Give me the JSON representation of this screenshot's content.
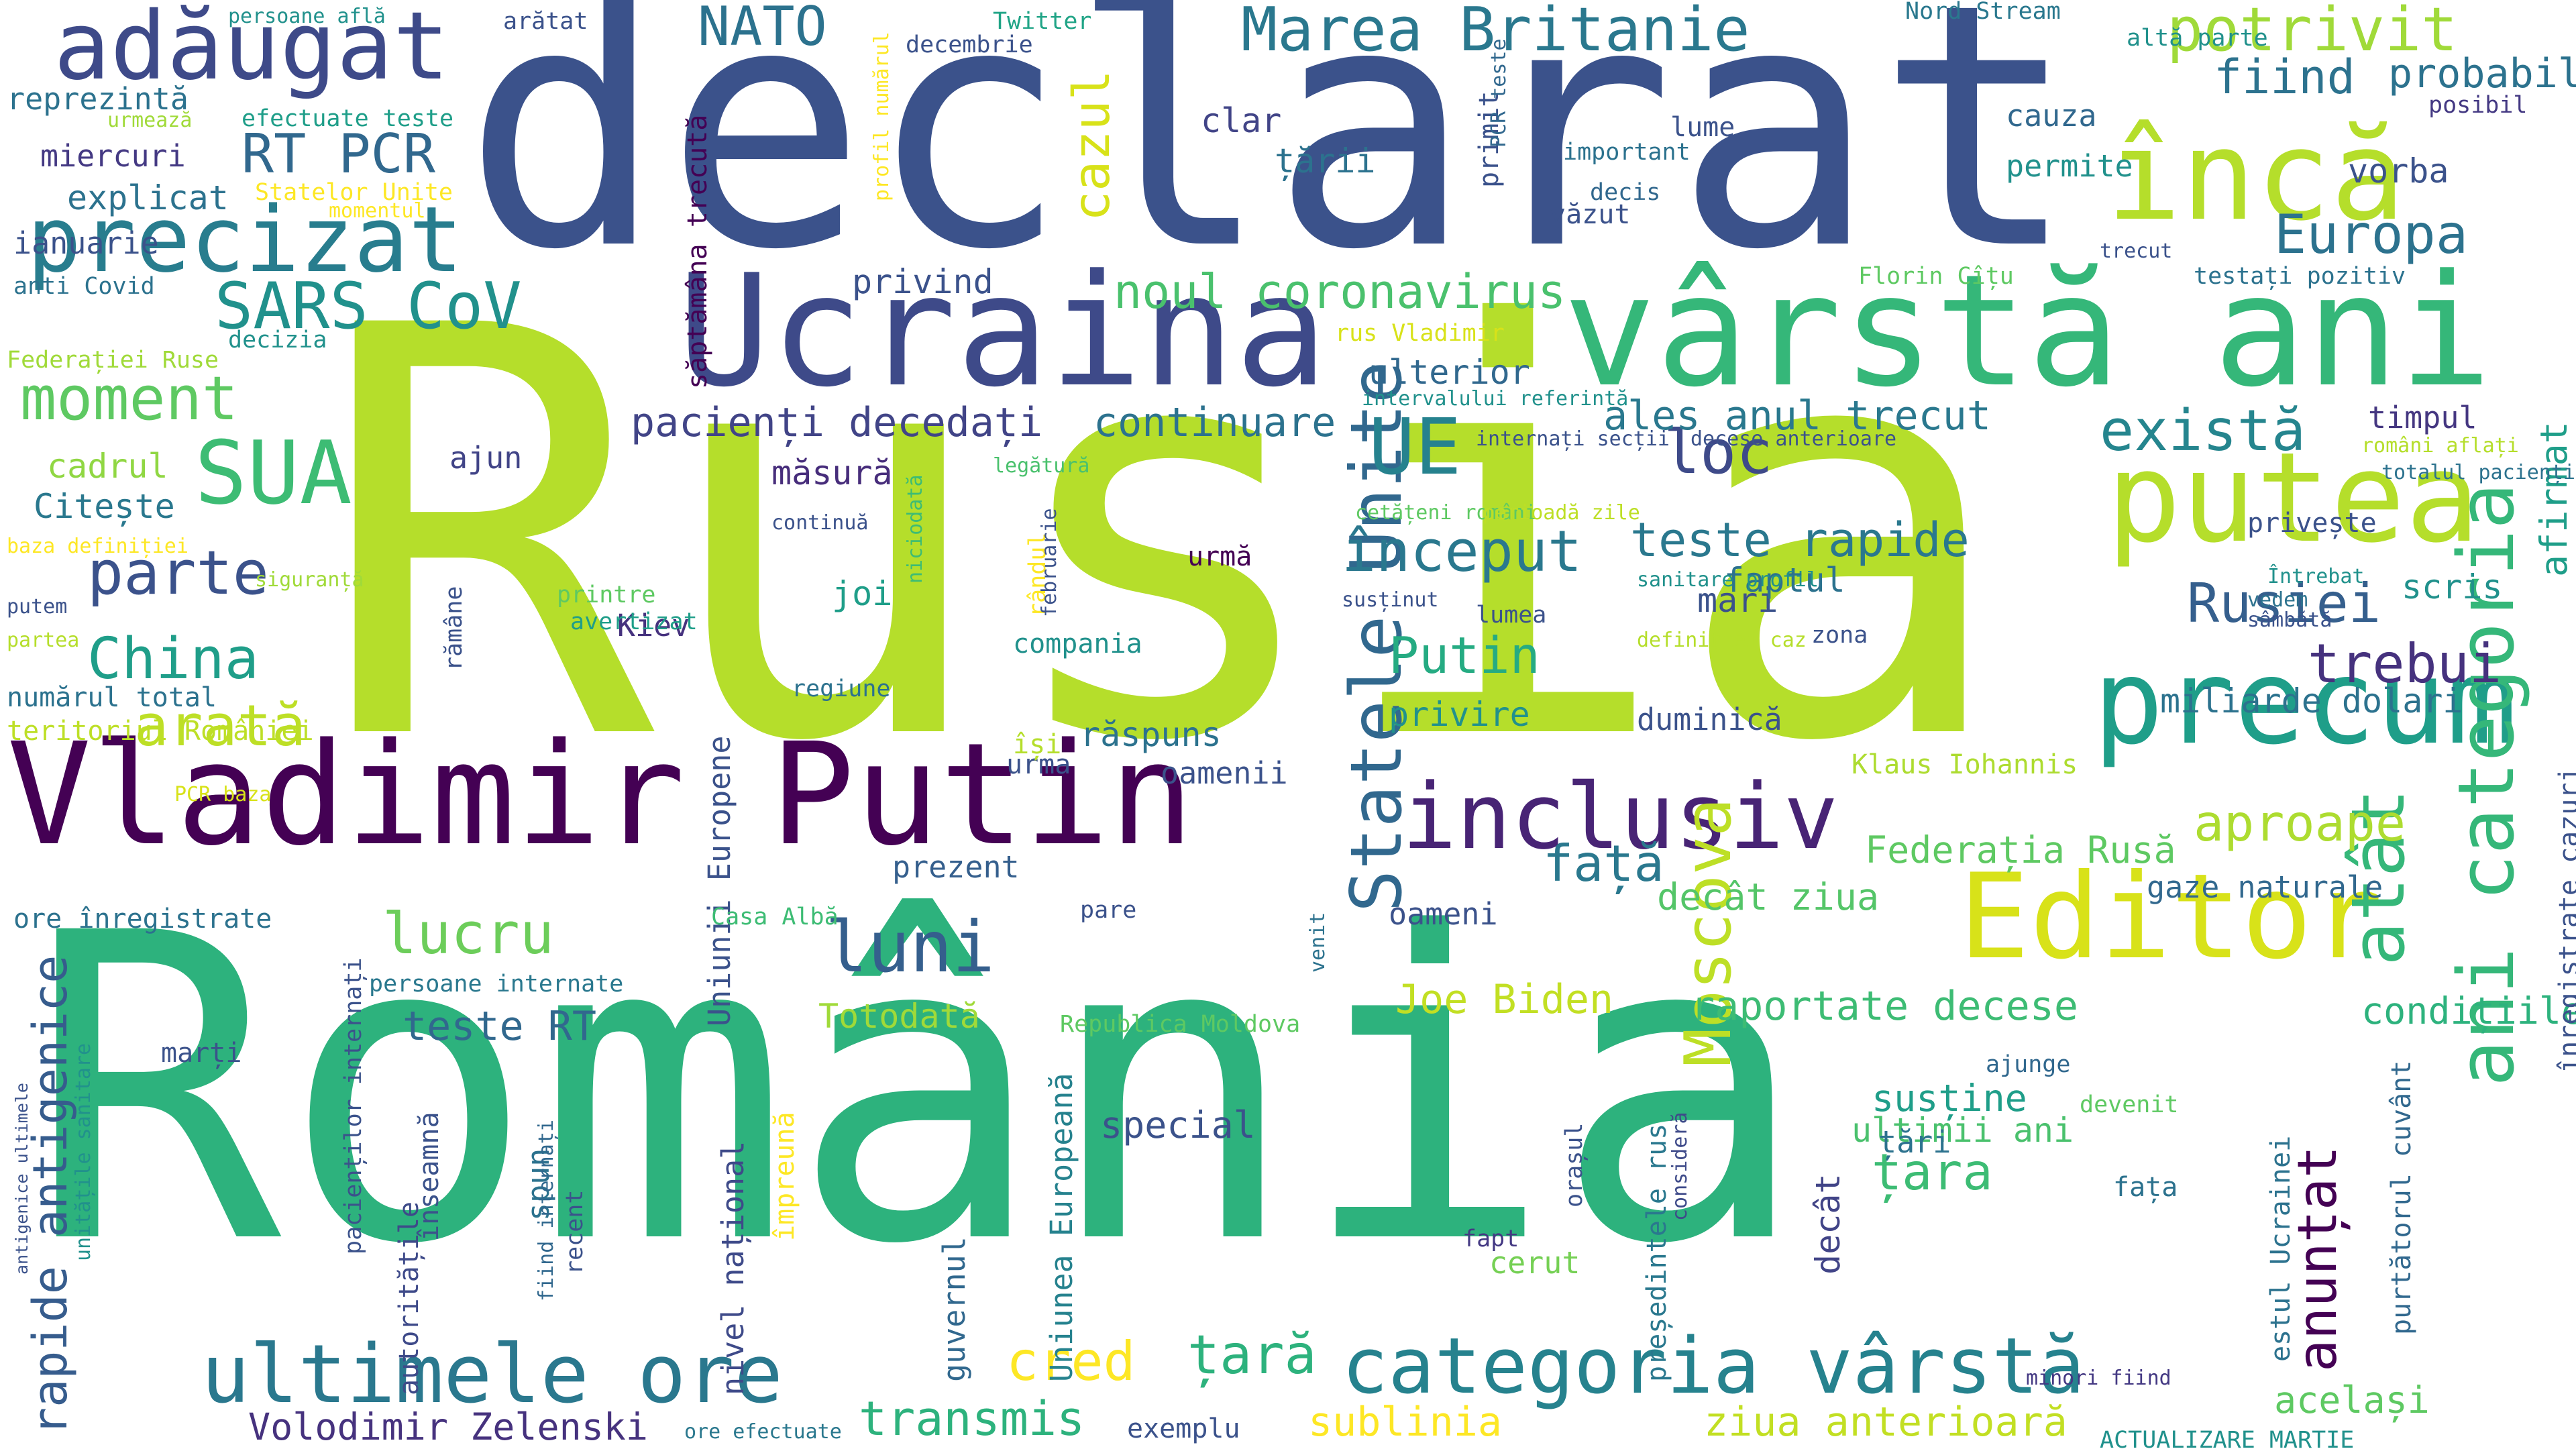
{
  "words": [
    {
      "text": "Rusia",
      "color": "#b5de2b"
    },
    {
      "text": "România",
      "color": "#2db27d"
    },
    {
      "text": "declarat",
      "color": "#3b528b"
    },
    {
      "text": "vârstă ani",
      "color": "#35b779"
    },
    {
      "text": "Ucraina",
      "color": "#3e4a89"
    },
    {
      "text": "Vladimir Putin",
      "color": "#440154"
    },
    {
      "text": "precum",
      "color": "#1f9e89"
    },
    {
      "text": "putea",
      "color": "#b5de2b"
    },
    {
      "text": "Editor",
      "color": "#d8e219"
    },
    {
      "text": "încă",
      "color": "#b5de2b"
    },
    {
      "text": "categoria vârstă",
      "color": "#26828e"
    },
    {
      "text": "ultimele ore",
      "color": "#2a788e"
    },
    {
      "text": "adăugat",
      "color": "#3e4a89"
    },
    {
      "text": "precizat",
      "color": "#287d8e"
    },
    {
      "text": "inclusiv",
      "color": "#482475"
    },
    {
      "text": "Statele Unite",
      "color": "#31688e"
    },
    {
      "text": "ani categoria",
      "color": "#35b779"
    },
    {
      "text": "atât",
      "color": "#35b779"
    },
    {
      "text": "SUA",
      "color": "#3dbc74"
    },
    {
      "text": "UE",
      "color": "#26828e"
    },
    {
      "text": "Moscova",
      "color": "#bddf26"
    },
    {
      "text": "luni",
      "color": "#355f8d"
    },
    {
      "text": "SARS CoV",
      "color": "#21918c"
    },
    {
      "text": "Marea Britanie",
      "color": "#2a788e"
    },
    {
      "text": "potrivit",
      "color": "#a0da39"
    },
    {
      "text": "există",
      "color": "#25858e"
    },
    {
      "text": "parte",
      "color": "#3b528b"
    },
    {
      "text": "moment",
      "color": "#5ec962"
    },
    {
      "text": "China",
      "color": "#1f9e89"
    },
    {
      "text": "arată",
      "color": "#bddf26"
    },
    {
      "text": "lucru",
      "color": "#6ccd5a"
    },
    {
      "text": "Rusiei",
      "color": "#355f8d"
    },
    {
      "text": "trebui",
      "color": "#46327e"
    },
    {
      "text": "loc",
      "color": "#3e4a89"
    },
    {
      "text": "început",
      "color": "#2a788e"
    },
    {
      "text": "Europa",
      "color": "#2c728e"
    },
    {
      "text": "cazul",
      "color": "#d8e219"
    },
    {
      "text": "față",
      "color": "#2a788e"
    },
    {
      "text": "anunțat",
      "color": "#440154"
    },
    {
      "text": "aproape",
      "color": "#addc30"
    },
    {
      "text": "țara",
      "color": "#3dbc74"
    },
    {
      "text": "țară",
      "color": "#2db27d"
    },
    {
      "text": "cred",
      "color": "#fde725"
    },
    {
      "text": "transmis",
      "color": "#2db27d"
    },
    {
      "text": "rapide antigenice",
      "color": "#365c8d"
    },
    {
      "text": "NATO",
      "color": "#2c728e"
    },
    {
      "text": "RT PCR",
      "color": "#31688e"
    },
    {
      "text": "fiind",
      "color": "#2c728e"
    },
    {
      "text": "probabil",
      "color": "#2c728e"
    },
    {
      "text": "noul coronavirus",
      "color": "#4ac16d"
    },
    {
      "text": "teste rapide",
      "color": "#2a788e"
    },
    {
      "text": "Putin",
      "color": "#25ab82"
    },
    {
      "text": "ales anul trecut",
      "color": "#2a788e"
    },
    {
      "text": "pacienți decedați",
      "color": "#414487"
    },
    {
      "text": "continuare",
      "color": "#2c728e"
    },
    {
      "text": "Joe Biden",
      "color": "#c2df23"
    },
    {
      "text": "raportate decese",
      "color": "#3dbc74"
    },
    {
      "text": "Volodimir Zelenski",
      "color": "#46327e"
    },
    {
      "text": "teste RT",
      "color": "#31688e"
    },
    {
      "text": "sublinia",
      "color": "#fde725"
    },
    {
      "text": "ziua anterioară",
      "color": "#c2df23"
    },
    {
      "text": "același",
      "color": "#5ec962"
    },
    {
      "text": "special",
      "color": "#3b528b"
    },
    {
      "text": "susține",
      "color": "#1f9e89"
    },
    {
      "text": "ultimii ani",
      "color": "#4ac16d"
    },
    {
      "text": "condițiile",
      "color": "#2db27d"
    },
    {
      "text": "gaze naturale",
      "color": "#31688e"
    },
    {
      "text": "decât ziua",
      "color": "#54c568"
    },
    {
      "text": "Federația Rusă",
      "color": "#5ec962"
    },
    {
      "text": "miliarde dolari",
      "color": "#2c728e"
    },
    {
      "text": "mari",
      "color": "#3b528b"
    },
    {
      "text": "faptul",
      "color": "#2c728e"
    },
    {
      "text": "măsură",
      "color": "#472d7b"
    },
    {
      "text": "privind",
      "color": "#3b528b"
    },
    {
      "text": "clar",
      "color": "#414487"
    },
    {
      "text": "țării",
      "color": "#2c728e"
    },
    {
      "text": "reprezintă",
      "color": "#2c728e"
    },
    {
      "text": "miercuri",
      "color": "#443983"
    },
    {
      "text": "explicat",
      "color": "#2c728e"
    },
    {
      "text": "ianuarie",
      "color": "#3b528b"
    },
    {
      "text": "Citește",
      "color": "#2a788e"
    },
    {
      "text": "cadrul",
      "color": "#90d743"
    },
    {
      "text": "timpul",
      "color": "#453781"
    },
    {
      "text": "vorba",
      "color": "#3b528b"
    },
    {
      "text": "cauza",
      "color": "#31688e"
    },
    {
      "text": "permite",
      "color": "#21918c"
    },
    {
      "text": "scris",
      "color": "#21918c"
    },
    {
      "text": "privește",
      "color": "#3b528b"
    },
    {
      "text": "afirmat",
      "color": "#1f9e89"
    },
    {
      "text": "Kiev",
      "color": "#46327e"
    },
    {
      "text": "joi",
      "color": "#1f9e89"
    },
    {
      "text": "răspuns",
      "color": "#2c728e"
    },
    {
      "text": "privire",
      "color": "#21918c"
    },
    {
      "text": "duminică",
      "color": "#3b528b"
    },
    {
      "text": "ajun",
      "color": "#414487"
    },
    {
      "text": "numărul total",
      "color": "#2c728e"
    },
    {
      "text": "teritoriul României",
      "color": "#bddf26"
    },
    {
      "text": "oamenii",
      "color": "#3b528b"
    },
    {
      "text": "oameni",
      "color": "#3b528b"
    },
    {
      "text": "prezent",
      "color": "#355f8d"
    },
    {
      "text": "urmă",
      "color": "#440154"
    },
    {
      "text": "urma",
      "color": "#3b528b"
    },
    {
      "text": "ulterior",
      "color": "#31688e"
    },
    {
      "text": "compania",
      "color": "#21918c"
    },
    {
      "text": "marți",
      "color": "#3b528b"
    },
    {
      "text": "nivel național",
      "color": "#3e4a89"
    },
    {
      "text": "Uniunea Europeană",
      "color": "#26828e"
    },
    {
      "text": "Uniunii Europene",
      "color": "#3b528b"
    },
    {
      "text": "Totodată",
      "color": "#a0da39"
    },
    {
      "text": "guvernul",
      "color": "#31688e"
    },
    {
      "text": "decât",
      "color": "#414487"
    },
    {
      "text": "țări",
      "color": "#2c728e"
    },
    {
      "text": "spun",
      "color": "#2c728e"
    },
    {
      "text": "înseamnă",
      "color": "#3b528b"
    },
    {
      "text": "autoritățile",
      "color": "#3e4a89"
    },
    {
      "text": "exemplu",
      "color": "#3b528b"
    },
    {
      "text": "ore înregistrate",
      "color": "#2c728e"
    },
    {
      "text": "cerut",
      "color": "#75d054"
    },
    {
      "text": "ajunge",
      "color": "#31688e"
    },
    {
      "text": "devenit",
      "color": "#5ec962"
    },
    {
      "text": "fața",
      "color": "#2c728e"
    },
    {
      "text": "estul Ucrainei",
      "color": "#2c728e"
    },
    {
      "text": "purtătorul cuvânt",
      "color": "#31688e"
    },
    {
      "text": "înregistrate cazuri",
      "color": "#3b528b"
    },
    {
      "text": "ACTUALIZARE MARTIE",
      "color": "#21918c"
    },
    {
      "text": "minori fiind",
      "color": "#443983"
    },
    {
      "text": "fapt",
      "color": "#443983"
    },
    {
      "text": "orașul",
      "color": "#3b528b"
    },
    {
      "text": "președintele rus",
      "color": "#2a788e"
    },
    {
      "text": "consideră",
      "color": "#3e4a89"
    },
    {
      "text": "împreună",
      "color": "#fde725"
    },
    {
      "text": "recent",
      "color": "#3b528b"
    },
    {
      "text": "fiind internați",
      "color": "#31688e"
    },
    {
      "text": "pacienților internați",
      "color": "#3b528b"
    },
    {
      "text": "persoane internate",
      "color": "#2a788e"
    },
    {
      "text": "Casa Albă",
      "color": "#3dbc74"
    },
    {
      "text": "pare",
      "color": "#3b528b"
    },
    {
      "text": "venit",
      "color": "#2c728e"
    },
    {
      "text": "Republica Moldova",
      "color": "#5ec962"
    },
    {
      "text": "ore efectuate",
      "color": "#2a788e"
    },
    {
      "text": "Klaus Iohannis",
      "color": "#addc30"
    },
    {
      "text": "Nord Stream",
      "color": "#2a788e"
    },
    {
      "text": "altă parte",
      "color": "#21918c"
    },
    {
      "text": "decembrie",
      "color": "#3b528b"
    },
    {
      "text": "Twitter",
      "color": "#20a486"
    },
    {
      "text": "arătat",
      "color": "#3b528b"
    },
    {
      "text": "persoane află",
      "color": "#21918c"
    },
    {
      "text": "efectuate teste",
      "color": "#1f9e89"
    },
    {
      "text": "urmează",
      "color": "#a0da39"
    },
    {
      "text": "Statelor Unite",
      "color": "#fde725"
    },
    {
      "text": "momentul",
      "color": "#fde725"
    },
    {
      "text": "anti Covid",
      "color": "#2c728e"
    },
    {
      "text": "decizia",
      "color": "#21918c"
    },
    {
      "text": "Federației Ruse",
      "color": "#a0da39"
    },
    {
      "text": "baza definiției",
      "color": "#fde725"
    },
    {
      "text": "putem",
      "color": "#3b528b"
    },
    {
      "text": "partea",
      "color": "#b5de2b"
    },
    {
      "text": "siguranță",
      "color": "#a0da39"
    },
    {
      "text": "PCR baza",
      "color": "#d8e219"
    },
    {
      "text": "săptămâna trecută",
      "color": "#440154"
    },
    {
      "text": "profil numărul",
      "color": "#fde725"
    },
    {
      "text": "rus Vladimir",
      "color": "#d8e219"
    },
    {
      "text": "primit",
      "color": "#3b528b"
    },
    {
      "text": "PCR teste",
      "color": "#31688e"
    },
    {
      "text": "lume",
      "color": "#3b528b"
    },
    {
      "text": "important",
      "color": "#2c728e"
    },
    {
      "text": "decis",
      "color": "#31688e"
    },
    {
      "text": "văzut",
      "color": "#3b528b"
    },
    {
      "text": "Florin Cîțu",
      "color": "#5ec962"
    },
    {
      "text": "trecut",
      "color": "#3b528b"
    },
    {
      "text": "testați pozitiv",
      "color": "#2c728e"
    },
    {
      "text": "posibil",
      "color": "#443983"
    },
    {
      "text": "intervalului referință",
      "color": "#21918c"
    },
    {
      "text": "internați secții",
      "color": "#3b528b"
    },
    {
      "text": "decese anterioare",
      "color": "#3b528b"
    },
    {
      "text": "români aflați",
      "color": "#b5de2b"
    },
    {
      "text": "totalul pacienților",
      "color": "#2c728e"
    },
    {
      "text": "cetățeni români",
      "color": "#5ec962"
    },
    {
      "text": "perioadă zile",
      "color": "#bddf26"
    },
    {
      "text": "niciodată",
      "color": "#3dbc74"
    },
    {
      "text": "legătură",
      "color": "#4ac16d"
    },
    {
      "text": "rândul",
      "color": "#fde725"
    },
    {
      "text": "februarie",
      "color": "#3b528b"
    },
    {
      "text": "continuă",
      "color": "#3b528b"
    },
    {
      "text": "printre",
      "color": "#5ec962"
    },
    {
      "text": "avertizat",
      "color": "#1f9e89"
    },
    {
      "text": "rămâne",
      "color": "#3b528b"
    },
    {
      "text": "regiune",
      "color": "#2c728e"
    },
    {
      "text": "își",
      "color": "#b5de2b"
    },
    {
      "text": "susținut",
      "color": "#3b528b"
    },
    {
      "text": "lumea",
      "color": "#3b528b"
    },
    {
      "text": "sanitare profil",
      "color": "#21918c"
    },
    {
      "text": "definiției caz",
      "color": "#b5de2b"
    },
    {
      "text": "zona",
      "color": "#3b528b"
    },
    {
      "text": "Întrebat",
      "color": "#21918c"
    },
    {
      "text": "vedem",
      "color": "#2c728e"
    },
    {
      "text": "sâmbătă",
      "color": "#3b528b"
    },
    {
      "text": "antigenice ultimele",
      "color": "#3b528b"
    },
    {
      "text": "unitățile sanitare",
      "color": "#21918c"
    }
  ]
}
